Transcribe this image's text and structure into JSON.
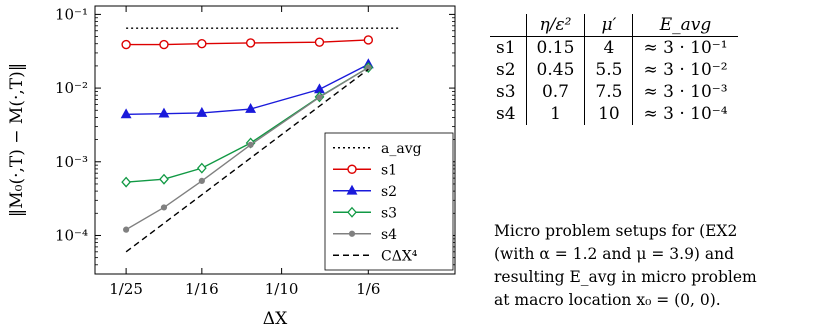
{
  "chart_data": {
    "type": "line",
    "xlabel": "ΔX",
    "ylabel": "‖M₀(·,T) − M(·,T)‖",
    "xscale": "log",
    "yscale": "log",
    "xticks": [
      {
        "value": 0.04,
        "label": "1/25"
      },
      {
        "value": 0.0625,
        "label": "1/16"
      },
      {
        "value": 0.1,
        "label": "1/10"
      },
      {
        "value": 0.16667,
        "label": "1/6"
      }
    ],
    "yticks": [
      {
        "value": 0.1,
        "label": "10⁻¹"
      },
      {
        "value": 0.01,
        "label": "10⁻²"
      },
      {
        "value": 0.001,
        "label": "10⁻³"
      },
      {
        "value": 0.0001,
        "label": "10⁻⁴"
      }
    ],
    "xlim": [
      0.0333,
      0.2778
    ],
    "ylim": [
      3e-05,
      0.13
    ],
    "grid": false,
    "legend_position": "bottom-right",
    "series": [
      {
        "name": "a_avg",
        "style": "dotted",
        "color": "#000000",
        "marker": "none",
        "x": [
          0.04,
          0.2
        ],
        "y": [
          0.065,
          0.065
        ]
      },
      {
        "name": "s1",
        "style": "solid",
        "color": "#dd0000",
        "marker": "circle",
        "x": [
          0.04,
          0.05,
          0.0625,
          0.0833,
          0.125,
          0.1667
        ],
        "y": [
          0.039,
          0.039,
          0.04,
          0.041,
          0.042,
          0.045
        ]
      },
      {
        "name": "s2",
        "style": "solid",
        "color": "#1a1adb",
        "marker": "triangle",
        "x": [
          0.04,
          0.05,
          0.0625,
          0.0833,
          0.125,
          0.1667
        ],
        "y": [
          0.0044,
          0.0045,
          0.0046,
          0.0052,
          0.0096,
          0.021
        ]
      },
      {
        "name": "s3",
        "style": "solid",
        "color": "#119944",
        "marker": "diamond",
        "x": [
          0.04,
          0.05,
          0.0625,
          0.0833,
          0.125,
          0.1667
        ],
        "y": [
          0.00053,
          0.00058,
          0.00082,
          0.0018,
          0.0076,
          0.019
        ]
      },
      {
        "name": "s4",
        "style": "solid",
        "color": "#808080",
        "marker": "dot",
        "x": [
          0.04,
          0.05,
          0.0625,
          0.0833,
          0.125,
          0.1667
        ],
        "y": [
          0.00012,
          0.00024,
          0.00055,
          0.0017,
          0.0075,
          0.019
        ]
      },
      {
        "name": "CΔX⁴",
        "style": "dashed",
        "color": "#000000",
        "marker": "none",
        "x": [
          0.04,
          0.1667
        ],
        "y": [
          6e-05,
          0.018
        ]
      }
    ]
  },
  "table": {
    "headers": [
      "",
      "η/ε²",
      "μ′",
      "E_avg"
    ],
    "rows": [
      [
        "s1",
        "0.15",
        "4",
        "≈ 3 · 10⁻¹"
      ],
      [
        "s2",
        "0.45",
        "5.5",
        "≈ 3 · 10⁻²"
      ],
      [
        "s3",
        "0.7",
        "7.5",
        "≈ 3 · 10⁻³"
      ],
      [
        "s4",
        "1",
        "10",
        "≈ 3 · 10⁻⁴"
      ]
    ]
  },
  "caption": "Micro problem setups for (EX2\n(with α = 1.2 and μ = 3.9) and\nresulting E_avg in micro problem\nat macro location x₀ = (0, 0)."
}
